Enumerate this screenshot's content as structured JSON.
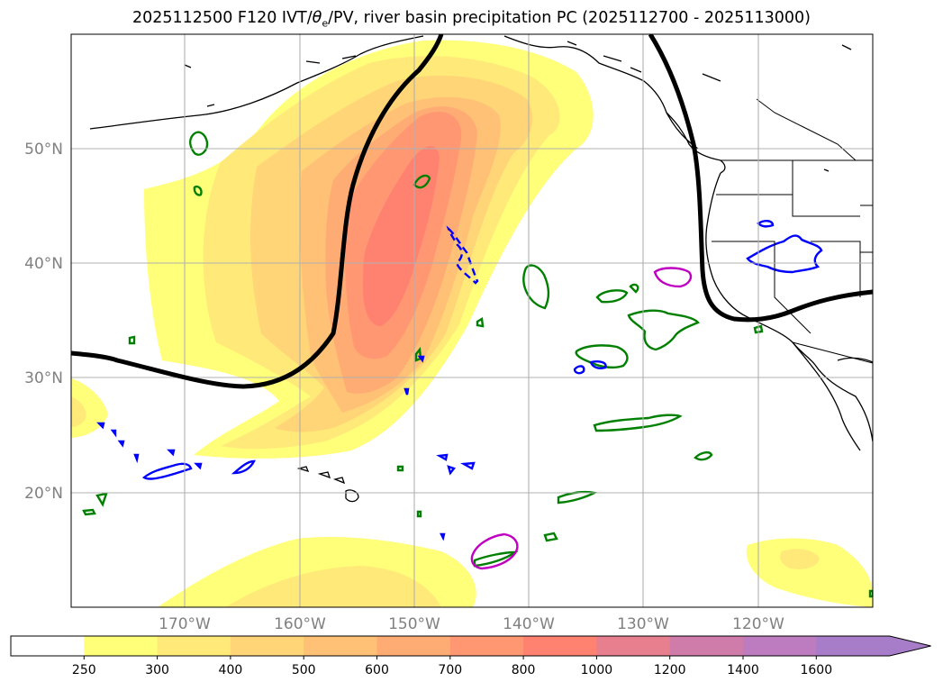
{
  "title": {
    "prefix": "2025112500 F120 IVT/",
    "theta": "θ",
    "theta_sub": "e",
    "suffix": "/PV, river basin precipitation PC (2025112700 - 2025113000)"
  },
  "axes": {
    "lat_labels": [
      "50°N",
      "40°N",
      "30°N",
      "20°N"
    ],
    "lon_labels": [
      "170°W",
      "160°W",
      "150°W",
      "140°W",
      "130°W",
      "120°W"
    ]
  },
  "colorbar": {
    "levels": [
      "250",
      "300",
      "400",
      "500",
      "600",
      "700",
      "800",
      "1000",
      "1200",
      "1400",
      "1600"
    ],
    "colors": [
      "#ffffff",
      "#ffff7a",
      "#ffea79",
      "#ffd577",
      "#ffc176",
      "#ffac74",
      "#ff9773",
      "#ff8271",
      "#e77f8e",
      "#d07caa",
      "#be7cc0",
      "#a77dc9"
    ]
  },
  "contour_colors": {
    "pv_line": "#000000",
    "green": "#008000",
    "blue": "#0000ff",
    "magenta": "#c000c0"
  }
}
